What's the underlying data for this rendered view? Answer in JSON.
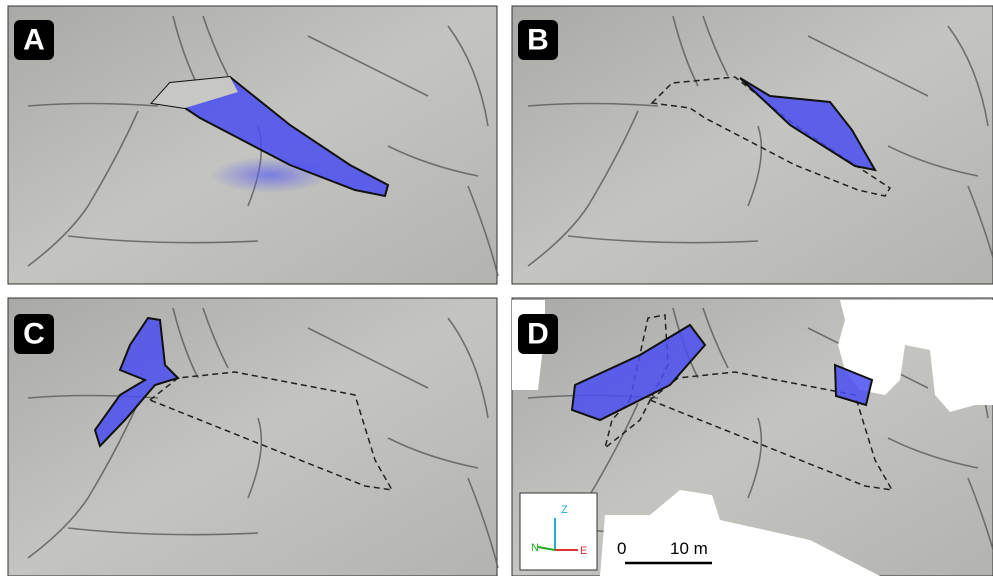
{
  "panels": [
    {
      "label": "A"
    },
    {
      "label": "B"
    },
    {
      "label": "C"
    },
    {
      "label": "D"
    }
  ],
  "compass": {
    "up": "Z",
    "north": "N",
    "east": "E"
  },
  "scale_bar": {
    "start": "0",
    "end": "10 m"
  }
}
